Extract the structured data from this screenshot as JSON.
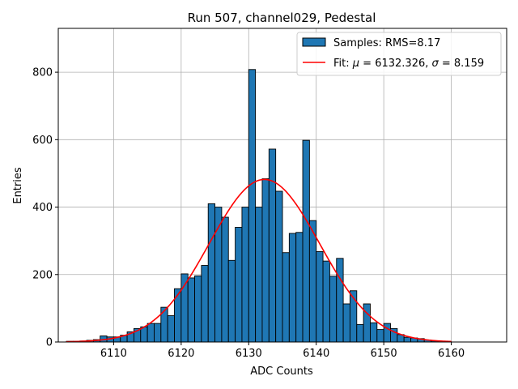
{
  "chart_data": {
    "type": "bar",
    "title": "Run 507, channel029, Pedestal",
    "xlabel": "ADC Counts",
    "ylabel": "Entries",
    "xlim": [
      6101.8,
      6168.2
    ],
    "ylim": [
      0,
      930
    ],
    "xticks": [
      6110,
      6120,
      6130,
      6140,
      6150,
      6160
    ],
    "yticks": [
      0,
      200,
      400,
      600,
      800
    ],
    "grid": true,
    "legend_position": "top-right",
    "colors": {
      "bars": "#1f77b4",
      "bar_edge": "#000000",
      "fit": "#ff0000",
      "grid": "#b0b0b0"
    },
    "histogram": {
      "name": "Samples: RMS=8.17",
      "bin_start": 6103,
      "bin_width": 1,
      "counts": [
        2,
        2,
        3,
        5,
        7,
        18,
        15,
        15,
        20,
        30,
        40,
        45,
        55,
        55,
        103,
        78,
        158,
        202,
        190,
        196,
        227,
        410,
        400,
        370,
        242,
        340,
        400,
        808,
        400,
        484,
        572,
        447,
        265,
        322,
        325,
        598,
        360,
        268,
        240,
        195,
        248,
        113,
        152,
        52,
        113,
        57,
        37,
        55,
        40,
        22,
        14,
        12,
        10,
        6,
        3,
        2,
        1
      ]
    },
    "fit": {
      "name": "Fit: μ = 6132.326, σ = 8.159",
      "mu": 6132.326,
      "sigma": 8.159,
      "amplitude": 482,
      "x_range": [
        6103,
        6160
      ]
    },
    "legend": [
      {
        "label_pre": "Samples: RMS=8.17"
      },
      {
        "label_pre": "Fit: ",
        "mu_symbol": "μ",
        "mu_text": " = 6132.326, ",
        "sigma_symbol": "σ",
        "sigma_text": " = 8.159"
      }
    ]
  }
}
